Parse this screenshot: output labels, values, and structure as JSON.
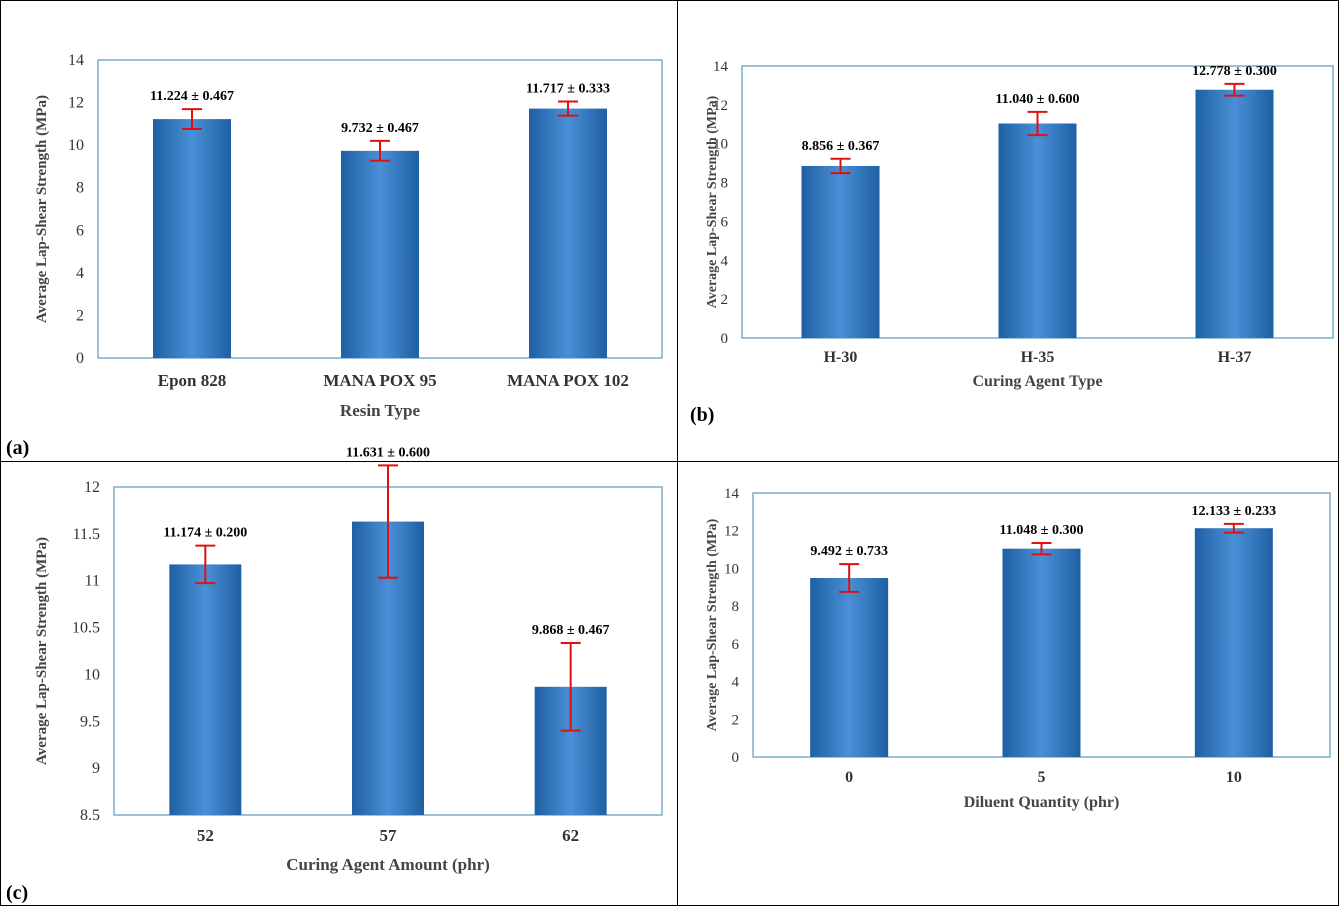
{
  "chart_data": [
    {
      "type": "bar",
      "panel_label": "(a)",
      "categories": [
        "Epon 828",
        "MANA POX 95",
        "MANA POX 102"
      ],
      "values": [
        11.224,
        9.732,
        11.717
      ],
      "errors": [
        0.467,
        0.467,
        0.333
      ],
      "data_labels": [
        "11.224 ± 0.467",
        "9.732 ± 0.467",
        "11.717 ± 0.333"
      ],
      "yticks": [
        "0",
        "2",
        "4",
        "6",
        "8",
        "10",
        "12",
        "14"
      ],
      "ylim": [
        0,
        14
      ],
      "xlabel": "Resin Type",
      "ylabel": "Average Lap-Shear Strength (MPa)",
      "grid": false
    },
    {
      "type": "bar",
      "panel_label": "(b)",
      "categories": [
        "H-30",
        "H-35",
        "H-37"
      ],
      "values": [
        8.856,
        11.04,
        12.778
      ],
      "errors": [
        0.367,
        0.6,
        0.3
      ],
      "data_labels": [
        "8.856 ± 0.367",
        "11.040 ± 0.600",
        "12.778 ± 0.300"
      ],
      "yticks": [
        "0",
        "2",
        "4",
        "6",
        "8",
        "10",
        "12",
        "14"
      ],
      "ylim": [
        0,
        14
      ],
      "xlabel": "Curing Agent Type",
      "ylabel": "Average Lap-Shear Strength (MPa)",
      "grid": false
    },
    {
      "type": "bar",
      "panel_label": "(c)",
      "categories": [
        "52",
        "57",
        "62"
      ],
      "values": [
        11.174,
        11.631,
        9.868
      ],
      "errors": [
        0.2,
        0.6,
        0.467
      ],
      "data_labels": [
        "11.174 ± 0.200",
        "11.631 ± 0.600",
        "9.868 ± 0.467"
      ],
      "yticks": [
        "8.5",
        "9",
        "9.5",
        "10",
        "10.5",
        "11",
        "11.5",
        "12"
      ],
      "ylim": [
        8.5,
        12
      ],
      "xlabel": "Curing Agent Amount (phr)",
      "ylabel": "Average Lap-Shear Strength (MPa)",
      "grid": false
    },
    {
      "type": "bar",
      "panel_label": "",
      "categories": [
        "0",
        "5",
        "10"
      ],
      "values": [
        9.492,
        11.048,
        12.133
      ],
      "errors": [
        0.733,
        0.3,
        0.233
      ],
      "data_labels": [
        "9.492 ± 0.733",
        "11.048 ± 0.300",
        "12.133 ± 0.233"
      ],
      "yticks": [
        "0",
        "2",
        "4",
        "6",
        "8",
        "10",
        "12",
        "14"
      ],
      "ylim": [
        0,
        14
      ],
      "xlabel": "Diluent Quantity (phr)",
      "ylabel": "Average Lap-Shear Strength (MPa)",
      "grid": false
    }
  ],
  "colors": {
    "bar_center": "#4a90d6",
    "bar_edge": "#1f5fa3",
    "error_bar": "#e01010",
    "plot_border": "#5a9ac0"
  }
}
